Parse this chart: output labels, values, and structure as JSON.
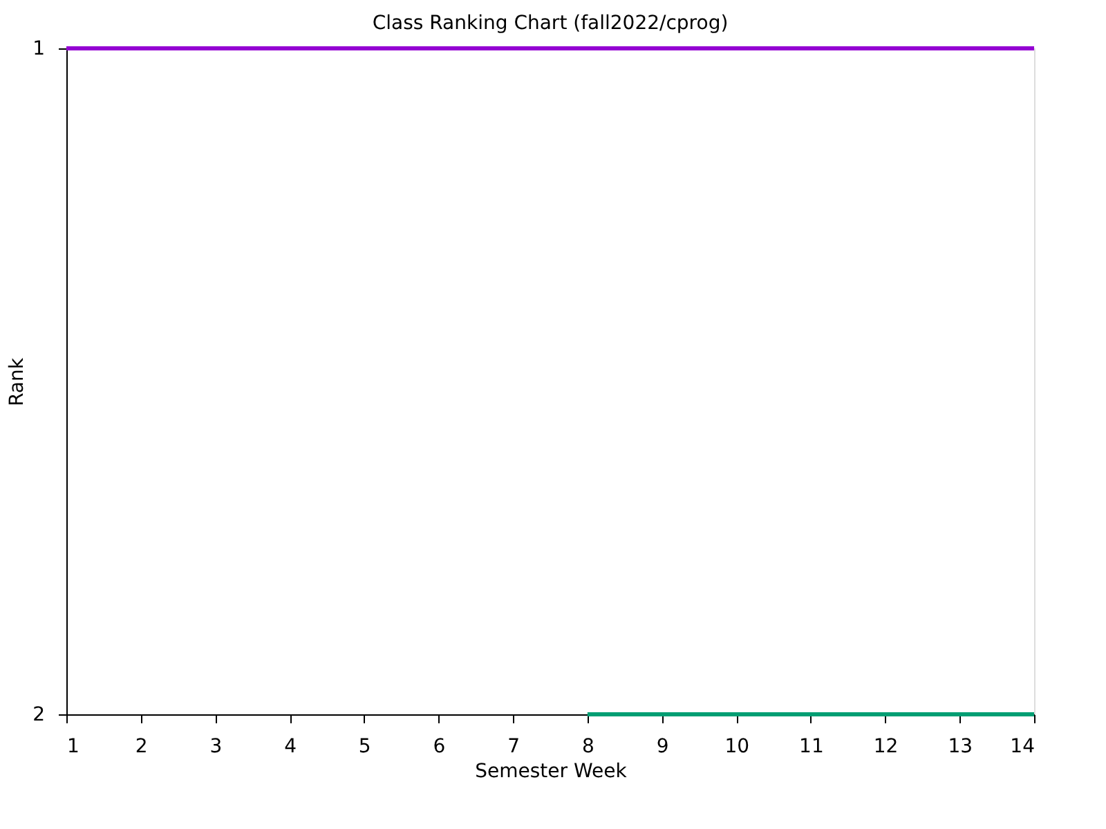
{
  "chart_data": {
    "type": "line",
    "title": "Class Ranking Chart (fall2022/cprog)",
    "xlabel": "Semester Week",
    "ylabel": "Rank",
    "xlim": [
      1,
      14
    ],
    "xticks": [
      1,
      2,
      3,
      4,
      5,
      6,
      7,
      8,
      9,
      10,
      11,
      12,
      13,
      14
    ],
    "ylim": [
      2,
      1
    ],
    "yticks": [
      1,
      2
    ],
    "grid": false,
    "legend": false,
    "marker": "none",
    "line_style": "solid",
    "series": [
      {
        "color": "#9400d3",
        "x": [
          1,
          2,
          3,
          4,
          5,
          6,
          7,
          8,
          9,
          10,
          11,
          12,
          13,
          14
        ],
        "values": [
          1,
          1,
          1,
          1,
          1,
          1,
          1,
          1,
          1,
          1,
          1,
          1,
          1,
          1
        ]
      },
      {
        "color": "#009e73",
        "x": [
          8,
          9,
          10,
          11,
          12,
          13,
          14
        ],
        "values": [
          2,
          2,
          2,
          2,
          2,
          2,
          2
        ]
      }
    ]
  }
}
